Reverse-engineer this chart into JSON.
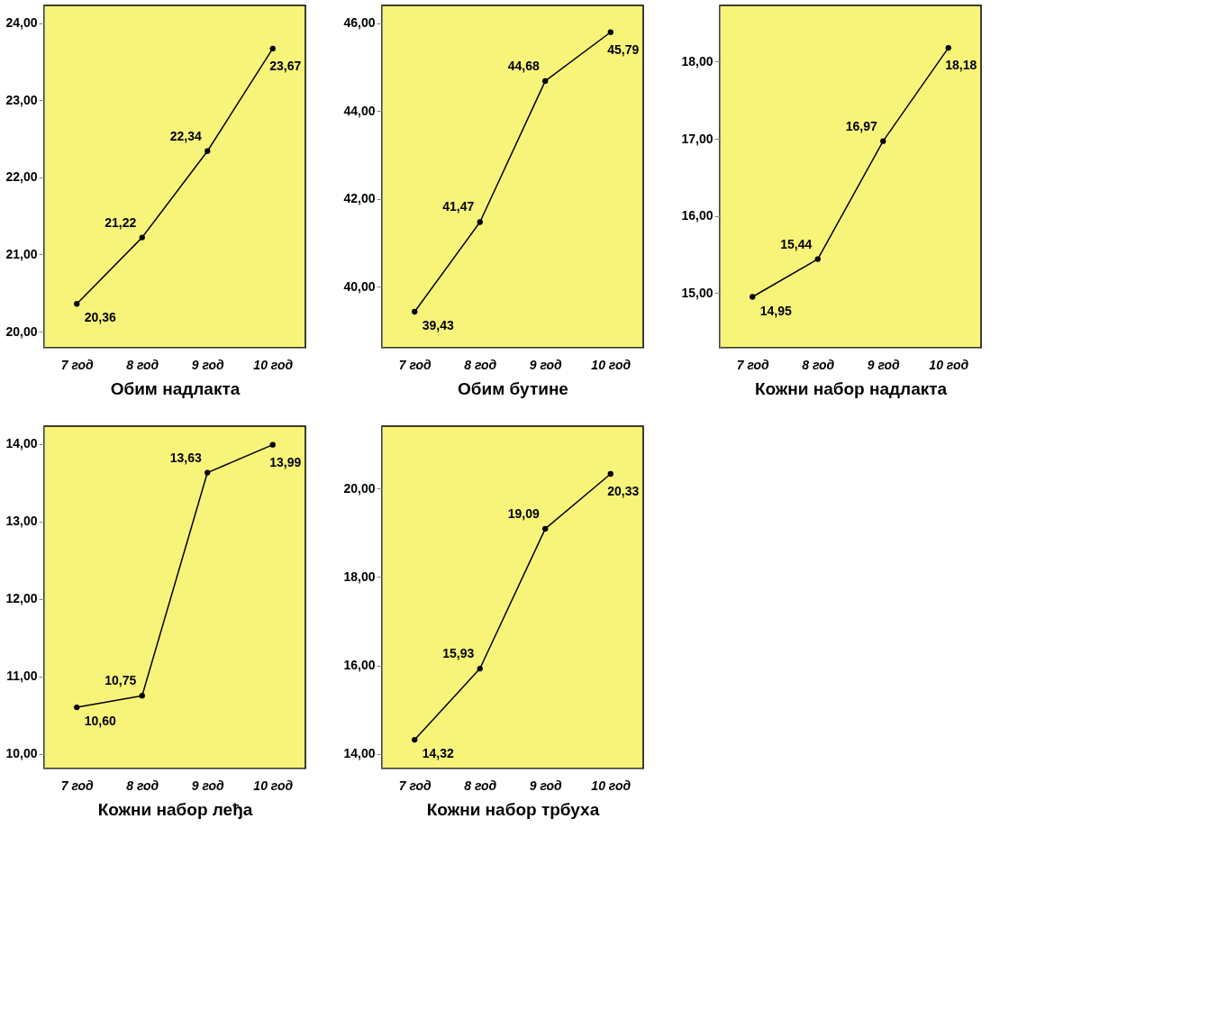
{
  "chart_data": [
    {
      "type": "line",
      "xlabel": "Обим надлакта",
      "categories": [
        "7 год",
        "8 год",
        "9 год",
        "10 год"
      ],
      "series": [
        {
          "color": "#000000",
          "values": [
            20.36,
            21.22,
            22.34,
            23.67
          ],
          "value_labels": [
            "20,36",
            "21,22",
            "22,34",
            "23,67"
          ]
        }
      ],
      "ylim": [
        19.79,
        24.23
      ],
      "yticks": [
        {
          "value": 20,
          "label": "20,00"
        },
        {
          "value": 21,
          "label": "21,00"
        },
        {
          "value": 22,
          "label": "22,00"
        },
        {
          "value": 23,
          "label": "23,00"
        },
        {
          "value": 24,
          "label": "24,00"
        }
      ],
      "marker": "circle",
      "line_style": "solid",
      "grid": false
    },
    {
      "type": "line",
      "xlabel": "Обим бутине",
      "categories": [
        "7 год",
        "8 год",
        "9 год",
        "10 год"
      ],
      "series": [
        {
          "color": "#000000",
          "values": [
            39.43,
            41.47,
            44.68,
            45.79
          ],
          "value_labels": [
            "39,43",
            "41,47",
            "44,68",
            "45,79"
          ]
        }
      ],
      "ylim": [
        38.61,
        46.4
      ],
      "yticks": [
        {
          "value": 40,
          "label": "40,00"
        },
        {
          "value": 42,
          "label": "42,00"
        },
        {
          "value": 44,
          "label": "44,00"
        },
        {
          "value": 46,
          "label": "46,00"
        }
      ],
      "marker": "circle",
      "line_style": "solid",
      "grid": false
    },
    {
      "type": "line",
      "xlabel": "Кожни набор надлакта",
      "categories": [
        "7 год",
        "8 год",
        "9 год",
        "10 год"
      ],
      "series": [
        {
          "color": "#000000",
          "values": [
            14.95,
            15.44,
            16.97,
            18.18
          ],
          "value_labels": [
            "14,95",
            "15,44",
            "16,97",
            "18,18"
          ]
        }
      ],
      "ylim": [
        14.29,
        18.73
      ],
      "yticks": [
        {
          "value": 15,
          "label": "15,00"
        },
        {
          "value": 16,
          "label": "16,00"
        },
        {
          "value": 17,
          "label": "17,00"
        },
        {
          "value": 18,
          "label": "18,00"
        }
      ],
      "marker": "circle",
      "line_style": "solid",
      "grid": false
    },
    {
      "type": "line",
      "xlabel": "Кожни набор леђа",
      "categories": [
        "7 год",
        "8 год",
        "9 год",
        "10 год"
      ],
      "series": [
        {
          "color": "#000000",
          "values": [
            10.6,
            10.75,
            13.63,
            13.99
          ],
          "value_labels": [
            "10,60",
            "10,75",
            "13,63",
            "13,99"
          ]
        }
      ],
      "ylim": [
        9.81,
        14.23
      ],
      "yticks": [
        {
          "value": 10,
          "label": "10,00"
        },
        {
          "value": 11,
          "label": "11,00"
        },
        {
          "value": 12,
          "label": "12,00"
        },
        {
          "value": 13,
          "label": "13,00"
        },
        {
          "value": 14,
          "label": "14,00"
        }
      ],
      "marker": "circle",
      "line_style": "solid",
      "grid": false
    },
    {
      "type": "line",
      "xlabel": "Кожни набор трбуха",
      "categories": [
        "7 год",
        "8 год",
        "9 год",
        "10 год"
      ],
      "series": [
        {
          "color": "#000000",
          "values": [
            14.32,
            15.93,
            19.09,
            20.33
          ],
          "value_labels": [
            "14,32",
            "15,93",
            "19,09",
            "20,33"
          ]
        }
      ],
      "ylim": [
        13.67,
        21.41
      ],
      "yticks": [
        {
          "value": 14,
          "label": "14,00"
        },
        {
          "value": 16,
          "label": "16,00"
        },
        {
          "value": 18,
          "label": "18,00"
        },
        {
          "value": 20,
          "label": "20,00"
        }
      ],
      "marker": "circle",
      "line_style": "solid",
      "grid": false
    }
  ]
}
